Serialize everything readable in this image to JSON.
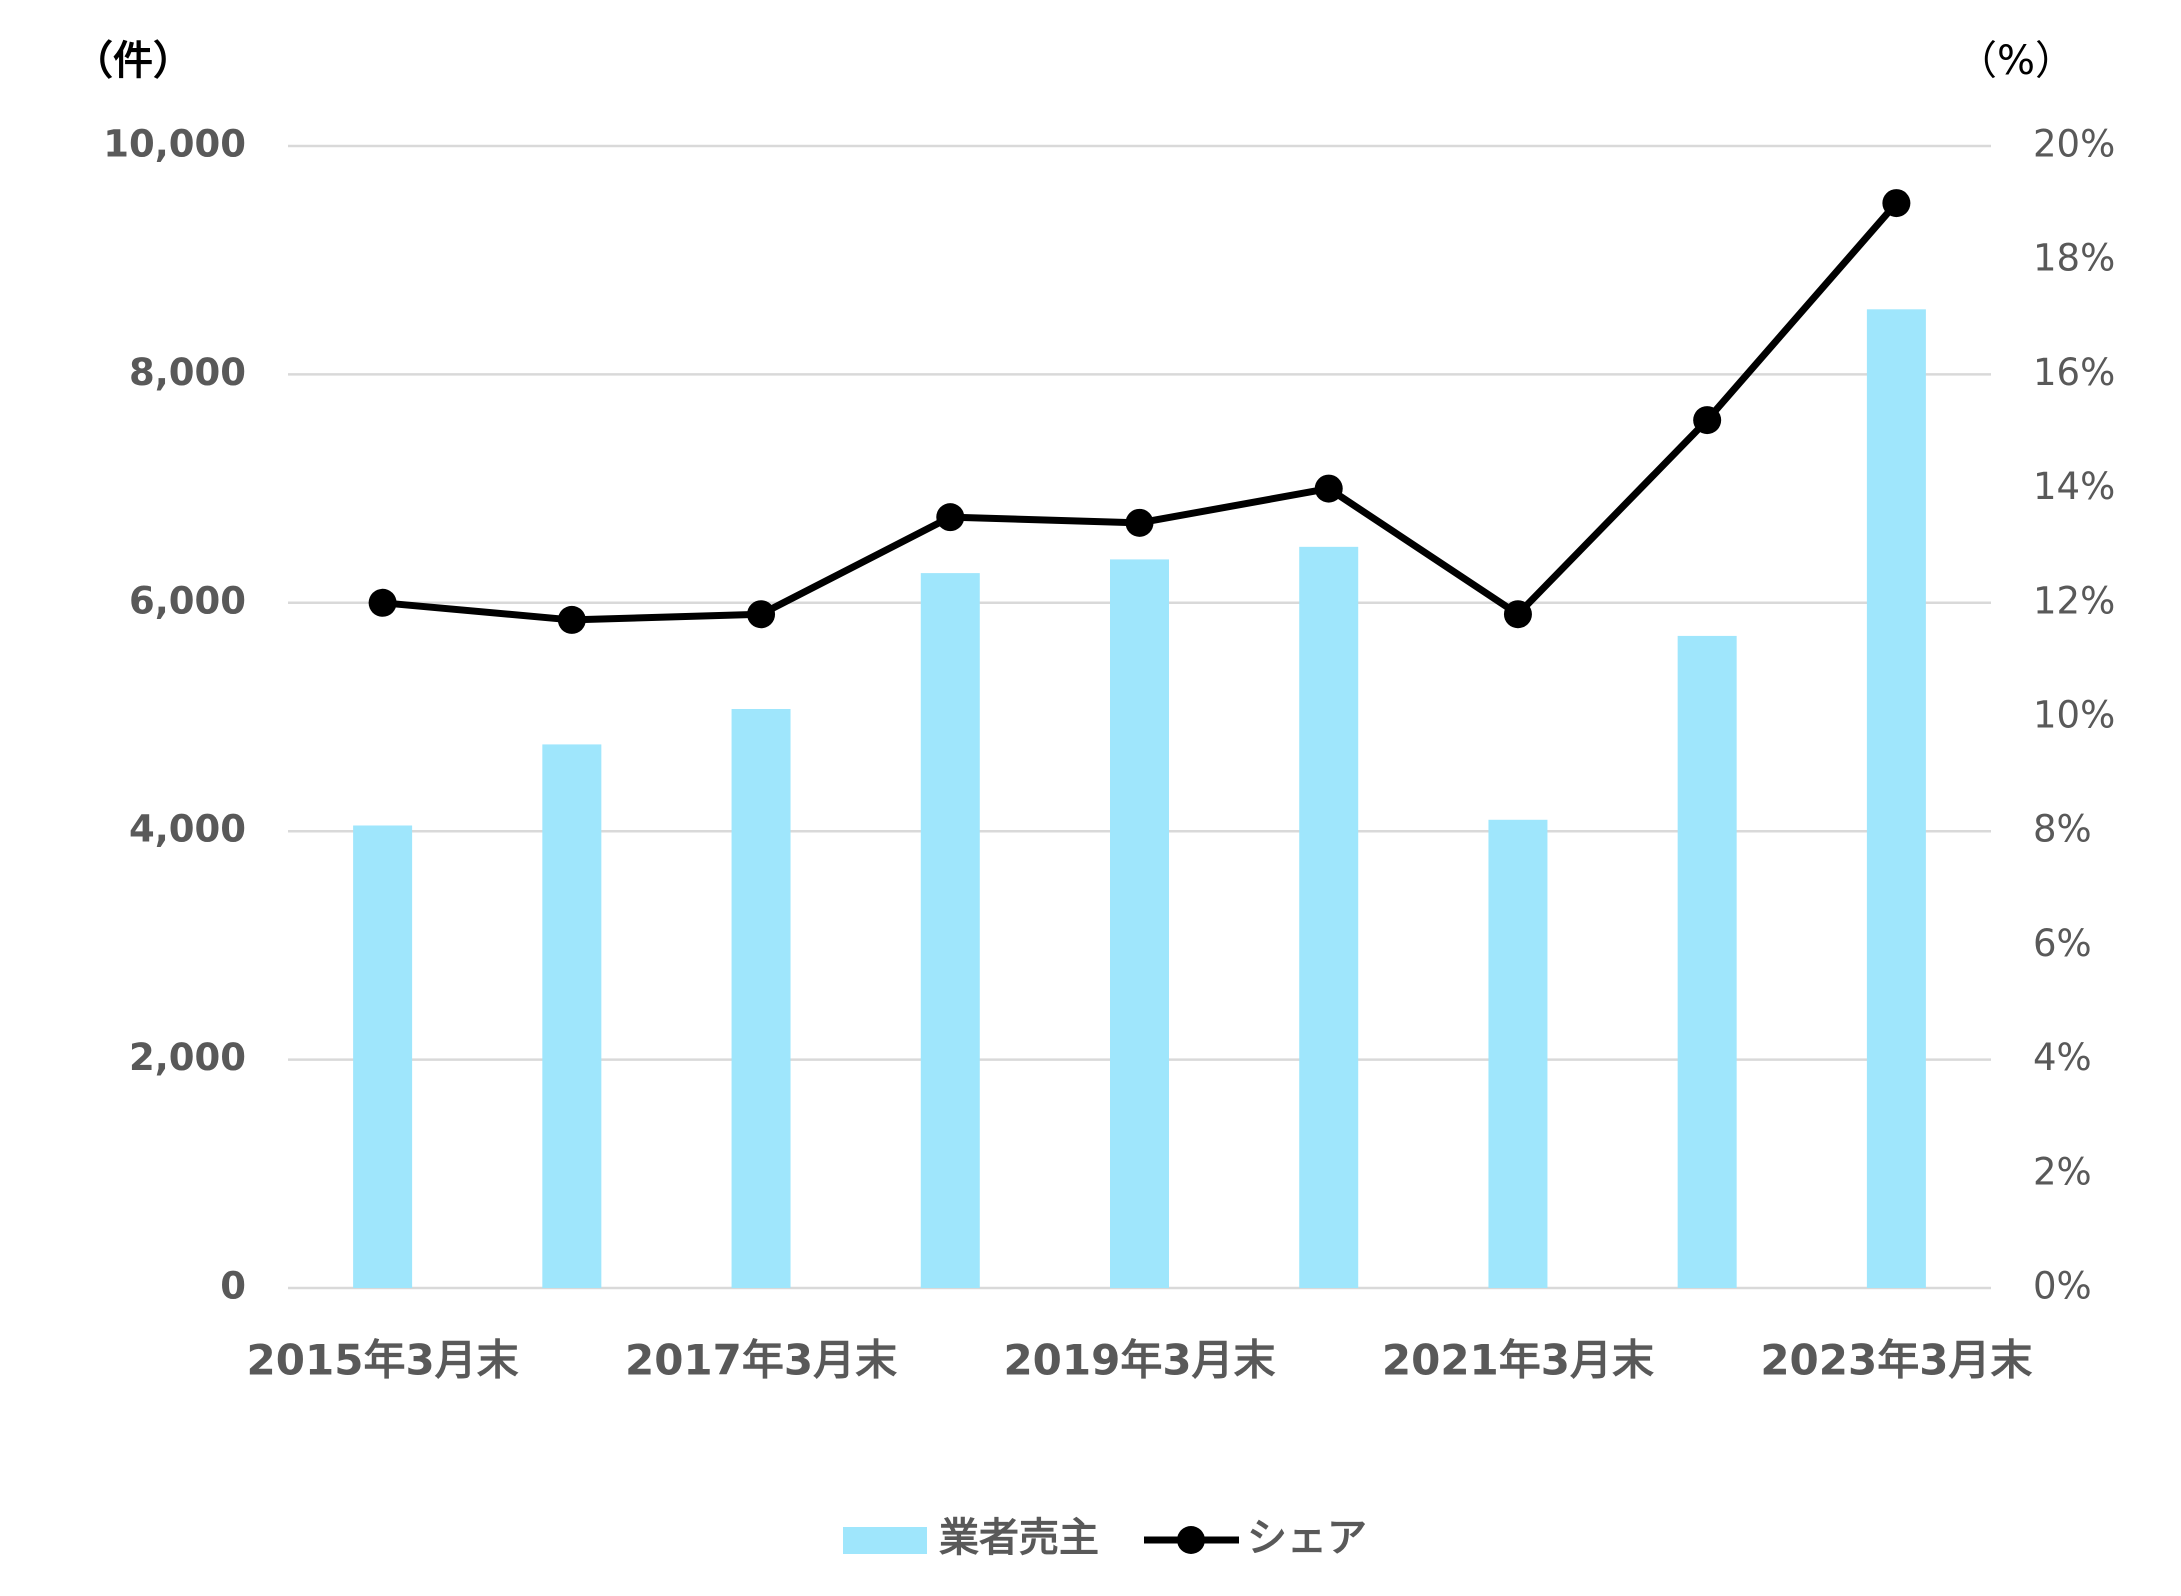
{
  "chart_data": {
    "type": "bar_line",
    "y_unit_label": "（件）",
    "y2_unit_label": "（%）",
    "categories": [
      "2015年3月末",
      null,
      "2017年3月末",
      null,
      "2019年3月末",
      null,
      "2021年3月末",
      null,
      "2023年3月末"
    ],
    "series": [
      {
        "name": "業者売主",
        "type": "bar",
        "color": "#9fe6fc",
        "values": [
          4050,
          4760,
          5070,
          6260,
          6380,
          6490,
          4100,
          5710,
          8570
        ]
      },
      {
        "name": "シェア",
        "type": "line",
        "axis": "y2",
        "color": "#000000",
        "values": [
          12.0,
          11.7,
          11.8,
          13.5,
          13.4,
          14.0,
          11.8,
          15.2,
          19.0
        ]
      }
    ],
    "ylim": [
      0,
      10000
    ],
    "yticks": [
      0,
      {
        "value": 2000,
        "label": "2,000"
      },
      {
        "value": 4000,
        "label": "4,000"
      },
      {
        "value": 6000,
        "label": "6,000"
      },
      {
        "value": 8000,
        "label": "8,000"
      },
      {
        "value": 10000,
        "label": "10,000"
      }
    ],
    "y2lim": [
      0,
      20
    ],
    "y2ticks": [
      {
        "value": 0,
        "label": "0%"
      },
      {
        "value": 2,
        "label": "2%"
      },
      {
        "value": 4,
        "label": "4%"
      },
      {
        "value": 6,
        "label": "6%"
      },
      {
        "value": 8,
        "label": "8%"
      },
      {
        "value": 10,
        "label": "10%"
      },
      {
        "value": 12,
        "label": "12%"
      },
      {
        "value": 14,
        "label": "14%"
      },
      {
        "value": 16,
        "label": "16%"
      },
      {
        "value": 18,
        "label": "18%"
      },
      {
        "value": 20,
        "label": "20%"
      }
    ],
    "grid": true
  }
}
